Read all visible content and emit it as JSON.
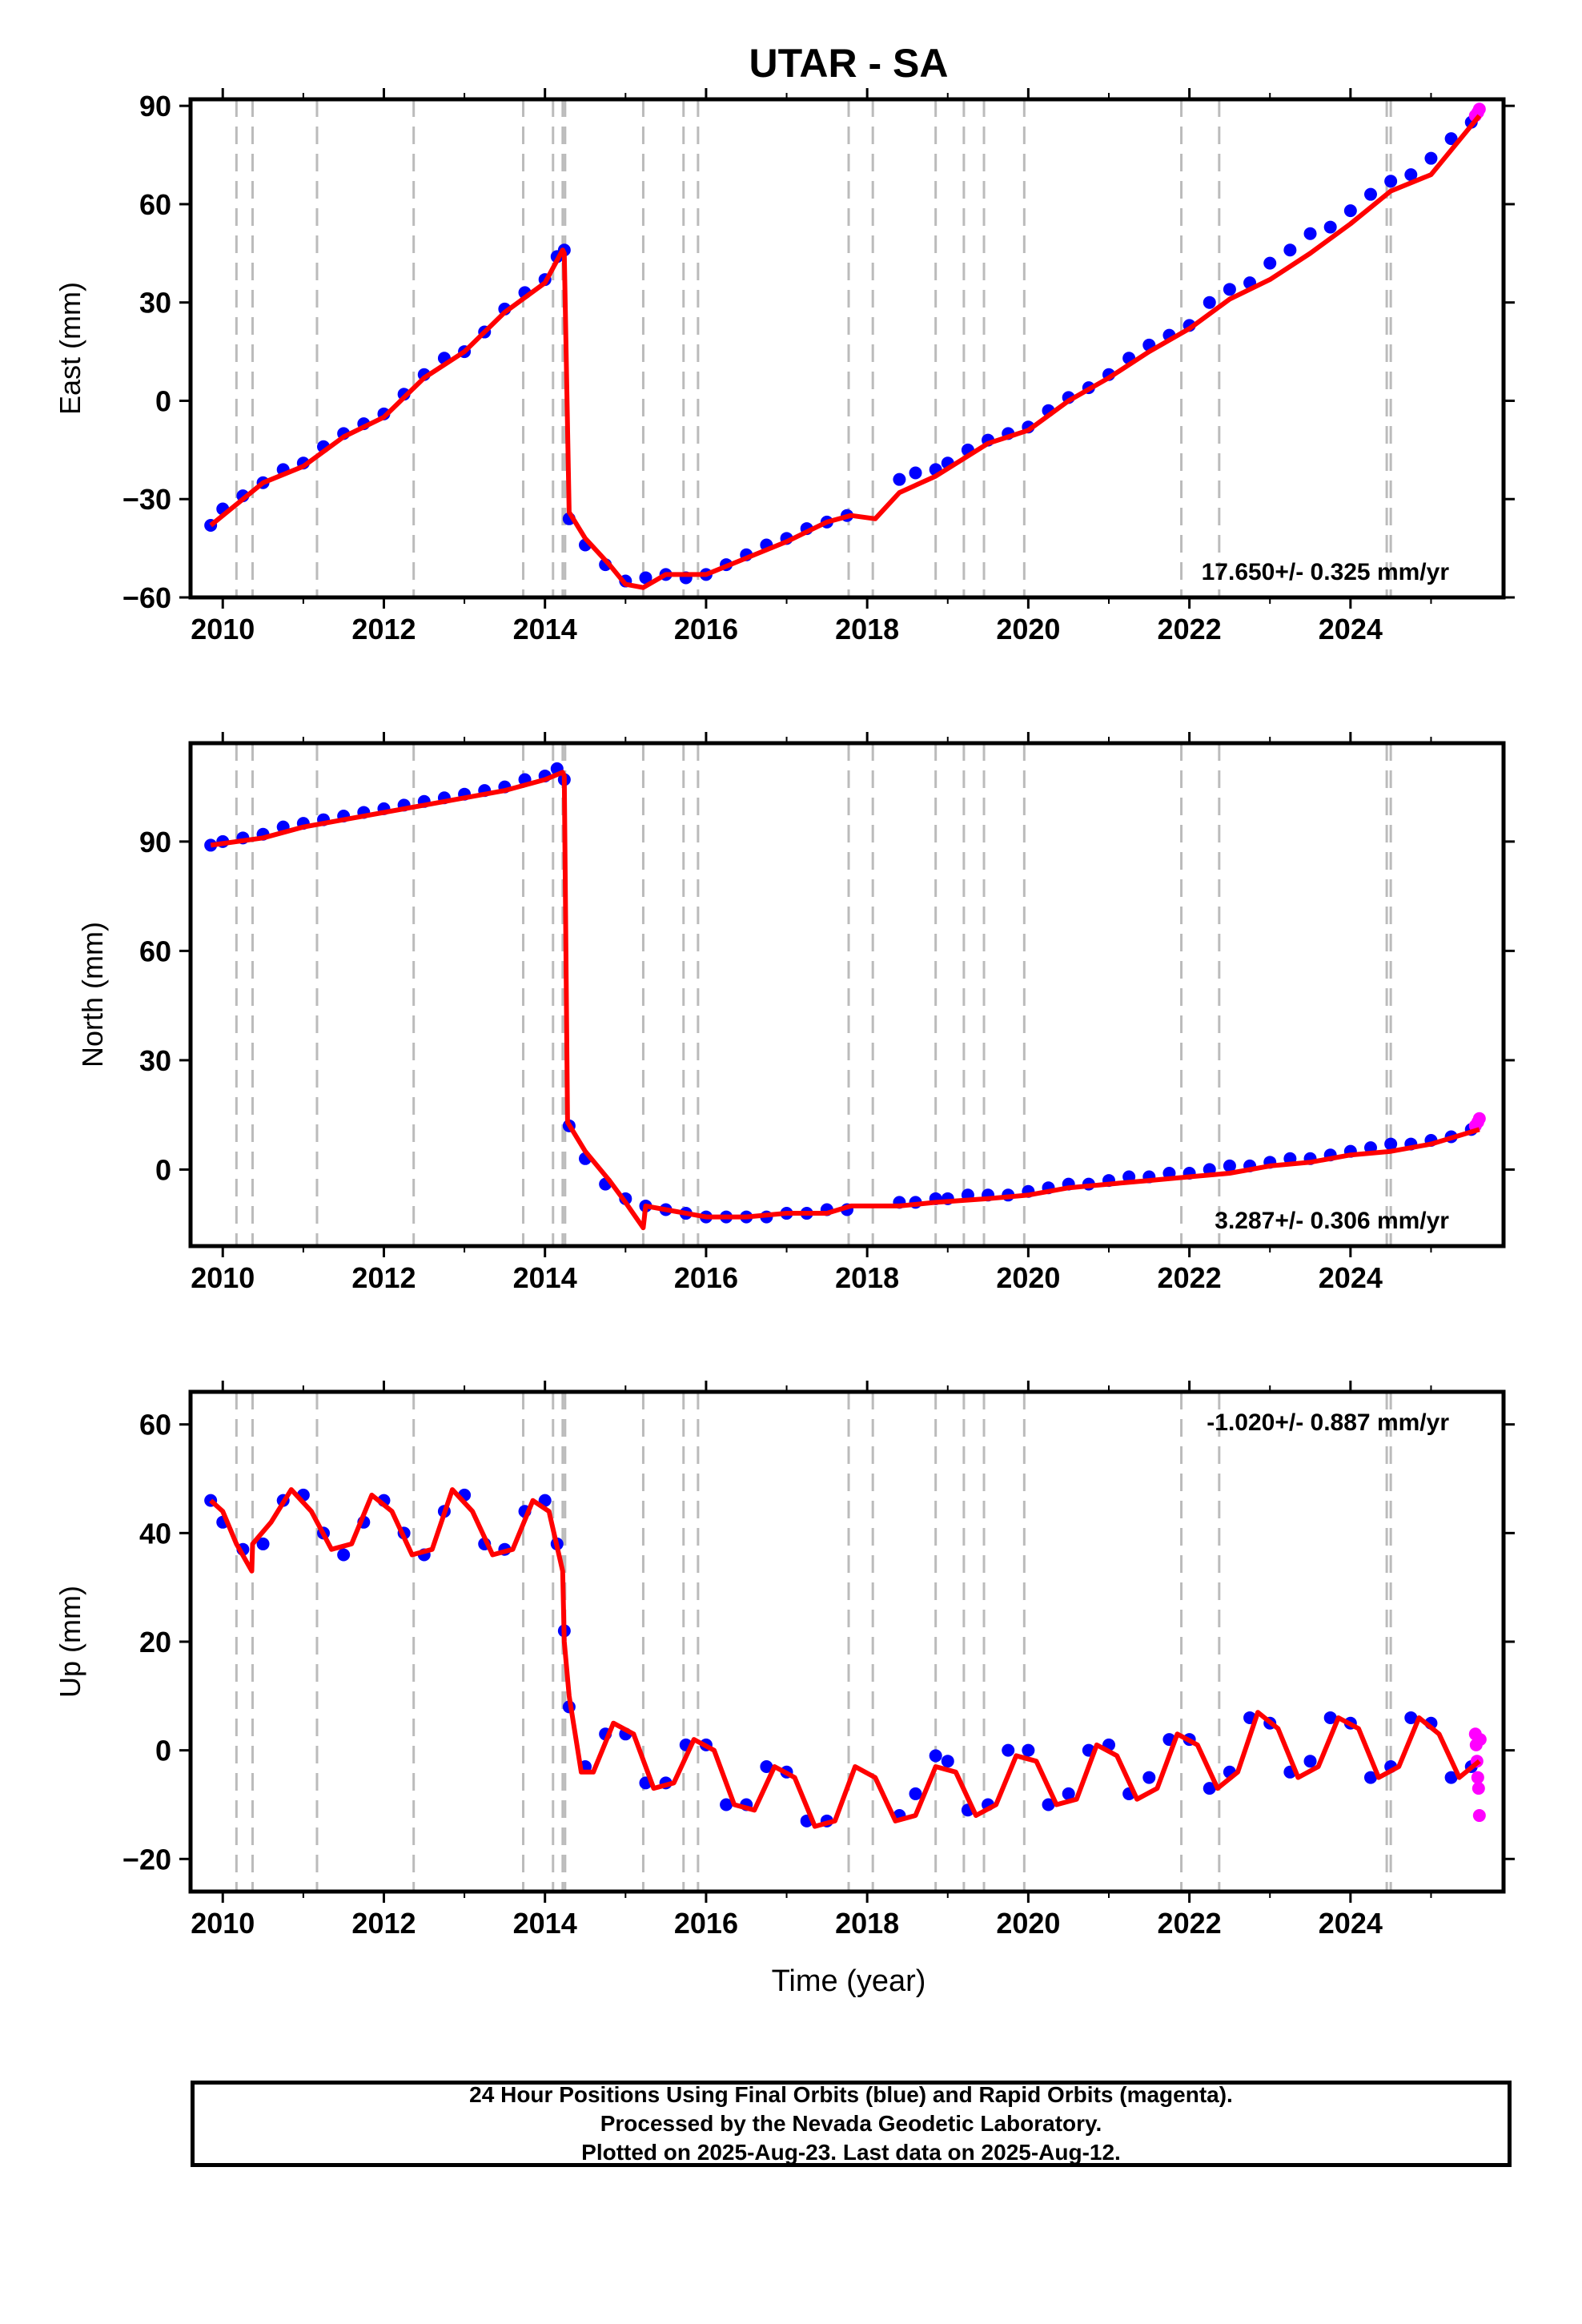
{
  "title": "UTAR - SA",
  "xlabel": "Time (year)",
  "caption": {
    "line1": "24 Hour Positions Using Final Orbits (blue) and Rapid Orbits (magenta).",
    "line2": "Processed by the Nevada Geodetic Laboratory.",
    "line3": "Plotted on 2025-Aug-23. Last data on 2025-Aug-12."
  },
  "colors": {
    "final_orbits": "#0000ff",
    "rapid_orbits": "#ff00ff",
    "model_fit": "#ff0000",
    "event_lines": "#bbbbbb"
  },
  "chart_data": [
    {
      "type": "scatter",
      "component": "east",
      "ylabel": "East (mm)",
      "rate_label": "17.650+/- 0.325 mm/yr",
      "xlim": [
        2009.6,
        2025.9
      ],
      "ylim": [
        -60,
        92
      ],
      "xticks": [
        2010,
        2012,
        2014,
        2016,
        2018,
        2020,
        2022,
        2024
      ],
      "yticks": [
        -60,
        -30,
        0,
        30,
        60,
        90
      ],
      "event_lines": [
        2010.17,
        2010.37,
        2011.17,
        2012.37,
        2013.73,
        2014.1,
        2014.22,
        2014.25,
        2015.22,
        2015.72,
        2015.9,
        2017.77,
        2018.07,
        2018.85,
        2019.2,
        2019.45,
        2019.95,
        2021.9,
        2022.37,
        2024.45,
        2024.5
      ],
      "series": [
        {
          "name": "Final Orbits",
          "color": "#0000ff",
          "x": [
            2009.85,
            2010.0,
            2010.25,
            2010.5,
            2010.75,
            2011.0,
            2011.25,
            2011.5,
            2011.75,
            2012.0,
            2012.25,
            2012.5,
            2012.75,
            2013.0,
            2013.25,
            2013.5,
            2013.75,
            2014.0,
            2014.15,
            2014.24,
            2014.3,
            2014.5,
            2014.75,
            2015.0,
            2015.25,
            2015.5,
            2015.75,
            2016.0,
            2016.25,
            2016.5,
            2016.75,
            2017.0,
            2017.25,
            2017.5,
            2017.75,
            2018.4,
            2018.6,
            2018.85,
            2019.0,
            2019.25,
            2019.5,
            2019.75,
            2020.0,
            2020.25,
            2020.5,
            2020.75,
            2021.0,
            2021.25,
            2021.5,
            2021.75,
            2022.0,
            2022.25,
            2022.5,
            2022.75,
            2023.0,
            2023.25,
            2023.5,
            2023.75,
            2024.0,
            2024.25,
            2024.5,
            2024.75,
            2025.0,
            2025.25,
            2025.5
          ],
          "y": [
            -38,
            -33,
            -29,
            -25,
            -21,
            -19,
            -14,
            -10,
            -7,
            -4,
            2,
            8,
            13,
            15,
            21,
            28,
            33,
            37,
            44,
            46,
            -36,
            -44,
            -50,
            -55,
            -54,
            -53,
            -54,
            -53,
            -50,
            -47,
            -44,
            -42,
            -39,
            -37,
            -35,
            -24,
            -22,
            -21,
            -19,
            -15,
            -12,
            -10,
            -8,
            -3,
            1,
            4,
            8,
            13,
            17,
            20,
            23,
            30,
            34,
            36,
            42,
            46,
            51,
            53,
            58,
            63,
            67,
            69,
            74,
            80,
            85
          ]
        },
        {
          "name": "Rapid Orbits",
          "color": "#ff00ff",
          "x": [
            2025.55,
            2025.58,
            2025.6
          ],
          "y": [
            87,
            88,
            89
          ]
        },
        {
          "name": "Model",
          "color": "#ff0000",
          "x": [
            2009.85,
            2010.5,
            2011.0,
            2011.5,
            2012.0,
            2012.5,
            2013.0,
            2013.5,
            2014.0,
            2014.22,
            2014.24,
            2014.3,
            2014.5,
            2014.8,
            2015.0,
            2015.22,
            2015.5,
            2016.0,
            2016.5,
            2017.0,
            2017.5,
            2017.8,
            2018.1,
            2018.4,
            2018.85,
            2019.5,
            2020.0,
            2020.5,
            2021.0,
            2021.5,
            2022.0,
            2022.5,
            2023.0,
            2023.5,
            2024.0,
            2024.5,
            2025.0,
            2025.6
          ],
          "y": [
            -38,
            -25,
            -20,
            -11,
            -5,
            7,
            15,
            27,
            36,
            46,
            45,
            -34,
            -42,
            -50,
            -56,
            -57,
            -53,
            -53,
            -48,
            -43,
            -37,
            -35,
            -36,
            -28,
            -23,
            -13,
            -9,
            0,
            7,
            15,
            22,
            31,
            37,
            45,
            54,
            64,
            69,
            87
          ]
        }
      ]
    },
    {
      "type": "scatter",
      "component": "north",
      "ylabel": "North (mm)",
      "rate_label": "3.287+/- 0.306 mm/yr",
      "xlim": [
        2009.6,
        2025.9
      ],
      "ylim": [
        -21,
        117
      ],
      "xticks": [
        2010,
        2012,
        2014,
        2016,
        2018,
        2020,
        2022,
        2024
      ],
      "yticks": [
        0,
        30,
        60,
        90
      ],
      "event_lines": [
        2010.17,
        2010.37,
        2011.17,
        2012.37,
        2013.73,
        2014.1,
        2014.22,
        2014.25,
        2015.22,
        2015.72,
        2015.9,
        2017.77,
        2018.07,
        2018.85,
        2019.2,
        2019.45,
        2019.95,
        2021.9,
        2022.37,
        2024.45,
        2024.5
      ],
      "series": [
        {
          "name": "Final Orbits",
          "color": "#0000ff",
          "x": [
            2009.85,
            2010.0,
            2010.25,
            2010.5,
            2010.75,
            2011.0,
            2011.25,
            2011.5,
            2011.75,
            2012.0,
            2012.25,
            2012.5,
            2012.75,
            2013.0,
            2013.25,
            2013.5,
            2013.75,
            2014.0,
            2014.15,
            2014.24,
            2014.3,
            2014.5,
            2014.75,
            2015.0,
            2015.25,
            2015.5,
            2015.75,
            2016.0,
            2016.25,
            2016.5,
            2016.75,
            2017.0,
            2017.25,
            2017.5,
            2017.75,
            2018.4,
            2018.6,
            2018.85,
            2019.0,
            2019.25,
            2019.5,
            2019.75,
            2020.0,
            2020.25,
            2020.5,
            2020.75,
            2021.0,
            2021.25,
            2021.5,
            2021.75,
            2022.0,
            2022.25,
            2022.5,
            2022.75,
            2023.0,
            2023.25,
            2023.5,
            2023.75,
            2024.0,
            2024.25,
            2024.5,
            2024.75,
            2025.0,
            2025.25,
            2025.5
          ],
          "y": [
            89,
            90,
            91,
            92,
            94,
            95,
            96,
            97,
            98,
            99,
            100,
            101,
            102,
            103,
            104,
            105,
            107,
            108,
            110,
            107,
            12,
            3,
            -4,
            -8,
            -10,
            -11,
            -12,
            -13,
            -13,
            -13,
            -13,
            -12,
            -12,
            -11,
            -11,
            -9,
            -9,
            -8,
            -8,
            -7,
            -7,
            -7,
            -6,
            -5,
            -4,
            -4,
            -3,
            -2,
            -2,
            -1,
            -1,
            0,
            1,
            1,
            2,
            3,
            3,
            4,
            5,
            6,
            7,
            7,
            8,
            9,
            11
          ]
        },
        {
          "name": "Rapid Orbits",
          "color": "#ff00ff",
          "x": [
            2025.55,
            2025.58,
            2025.6
          ],
          "y": [
            12,
            13,
            14
          ]
        },
        {
          "name": "Model",
          "color": "#ff0000",
          "x": [
            2009.85,
            2010.5,
            2011.0,
            2011.5,
            2012.0,
            2012.5,
            2013.0,
            2013.5,
            2014.0,
            2014.22,
            2014.24,
            2014.28,
            2014.5,
            2014.8,
            2015.0,
            2015.22,
            2015.25,
            2015.5,
            2016.0,
            2016.5,
            2017.0,
            2017.5,
            2017.8,
            2018.1,
            2018.4,
            2018.85,
            2019.5,
            2020.0,
            2020.5,
            2021.0,
            2021.5,
            2022.0,
            2022.5,
            2023.0,
            2023.5,
            2024.0,
            2024.5,
            2025.0,
            2025.6
          ],
          "y": [
            89,
            91,
            94,
            96,
            98,
            100,
            102,
            104,
            107,
            109,
            108,
            13,
            5,
            -3,
            -9,
            -16,
            -10,
            -11,
            -13,
            -13,
            -12,
            -12,
            -10,
            -10,
            -10,
            -9,
            -8,
            -7,
            -5,
            -4,
            -3,
            -2,
            -1,
            1,
            2,
            4,
            5,
            7,
            11
          ]
        }
      ]
    },
    {
      "type": "scatter",
      "component": "up",
      "ylabel": "Up (mm)",
      "rate_label": "-1.020+/- 0.887 mm/yr",
      "xlim": [
        2009.6,
        2025.9
      ],
      "ylim": [
        -26,
        66
      ],
      "xticks": [
        2010,
        2012,
        2014,
        2016,
        2018,
        2020,
        2022,
        2024
      ],
      "yticks": [
        -20,
        0,
        20,
        40,
        60
      ],
      "event_lines": [
        2010.17,
        2010.37,
        2011.17,
        2012.37,
        2013.73,
        2014.1,
        2014.22,
        2014.25,
        2015.22,
        2015.72,
        2015.9,
        2017.77,
        2018.07,
        2018.85,
        2019.2,
        2019.45,
        2019.95,
        2021.9,
        2022.37,
        2024.45,
        2024.5
      ],
      "series": [
        {
          "name": "Final Orbits",
          "color": "#0000ff",
          "x": [
            2009.85,
            2010.0,
            2010.25,
            2010.5,
            2010.75,
            2011.0,
            2011.25,
            2011.5,
            2011.75,
            2012.0,
            2012.25,
            2012.5,
            2012.75,
            2013.0,
            2013.25,
            2013.5,
            2013.75,
            2014.0,
            2014.15,
            2014.24,
            2014.3,
            2014.5,
            2014.75,
            2015.0,
            2015.25,
            2015.5,
            2015.75,
            2016.0,
            2016.25,
            2016.5,
            2016.75,
            2017.0,
            2017.25,
            2017.5,
            2018.4,
            2018.6,
            2018.85,
            2019.0,
            2019.25,
            2019.5,
            2019.75,
            2020.0,
            2020.25,
            2020.5,
            2020.75,
            2021.0,
            2021.25,
            2021.5,
            2021.75,
            2022.0,
            2022.25,
            2022.5,
            2022.75,
            2023.0,
            2023.25,
            2023.5,
            2023.75,
            2024.0,
            2024.25,
            2024.5,
            2024.75,
            2025.0,
            2025.25,
            2025.5
          ],
          "y": [
            46,
            42,
            37,
            38,
            46,
            47,
            40,
            36,
            42,
            46,
            40,
            36,
            44,
            47,
            38,
            37,
            44,
            46,
            38,
            22,
            8,
            -3,
            3,
            3,
            -6,
            -6,
            1,
            1,
            -10,
            -10,
            -3,
            -4,
            -13,
            -13,
            -12,
            -8,
            -1,
            -2,
            -11,
            -10,
            0,
            0,
            -10,
            -8,
            0,
            1,
            -8,
            -5,
            2,
            2,
            -7,
            -4,
            6,
            5,
            -4,
            -2,
            6,
            5,
            -5,
            -3,
            6,
            5,
            -5,
            -3
          ]
        },
        {
          "name": "Rapid Orbits",
          "color": "#ff00ff",
          "x": [
            2025.55,
            2025.56,
            2025.57,
            2025.58,
            2025.59,
            2025.6,
            2025.61
          ],
          "y": [
            3,
            1,
            -2,
            -5,
            -7,
            -12,
            2
          ]
        },
        {
          "name": "Model",
          "color": "#ff0000",
          "x": [
            2009.85,
            2010.0,
            2010.17,
            2010.36,
            2010.37,
            2010.6,
            2010.85,
            2011.1,
            2011.35,
            2011.6,
            2011.85,
            2012.1,
            2012.35,
            2012.6,
            2012.85,
            2013.1,
            2013.35,
            2013.6,
            2013.85,
            2014.05,
            2014.22,
            2014.24,
            2014.3,
            2014.45,
            2014.6,
            2014.85,
            2015.1,
            2015.35,
            2015.6,
            2015.85,
            2016.1,
            2016.35,
            2016.6,
            2016.85,
            2017.1,
            2017.35,
            2017.6,
            2017.85,
            2018.1,
            2018.35,
            2018.6,
            2018.85,
            2019.1,
            2019.35,
            2019.6,
            2019.85,
            2020.1,
            2020.35,
            2020.6,
            2020.85,
            2021.1,
            2021.35,
            2021.6,
            2021.85,
            2022.1,
            2022.35,
            2022.6,
            2022.85,
            2023.1,
            2023.35,
            2023.6,
            2023.85,
            2024.1,
            2024.35,
            2024.6,
            2024.85,
            2025.1,
            2025.35,
            2025.6
          ],
          "y": [
            46,
            44,
            38,
            33,
            38,
            42,
            48,
            44,
            37,
            38,
            47,
            44,
            36,
            37,
            48,
            44,
            36,
            37,
            46,
            44,
            33,
            20,
            10,
            -4,
            -4,
            5,
            3,
            -7,
            -6,
            2,
            0,
            -10,
            -11,
            -3,
            -5,
            -14,
            -13,
            -3,
            -5,
            -13,
            -12,
            -3,
            -4,
            -12,
            -10,
            -1,
            -2,
            -10,
            -9,
            1,
            -1,
            -9,
            -7,
            3,
            1,
            -7,
            -4,
            7,
            4,
            -5,
            -3,
            6,
            4,
            -5,
            -3,
            6,
            3,
            -5,
            -2
          ]
        }
      ]
    }
  ]
}
